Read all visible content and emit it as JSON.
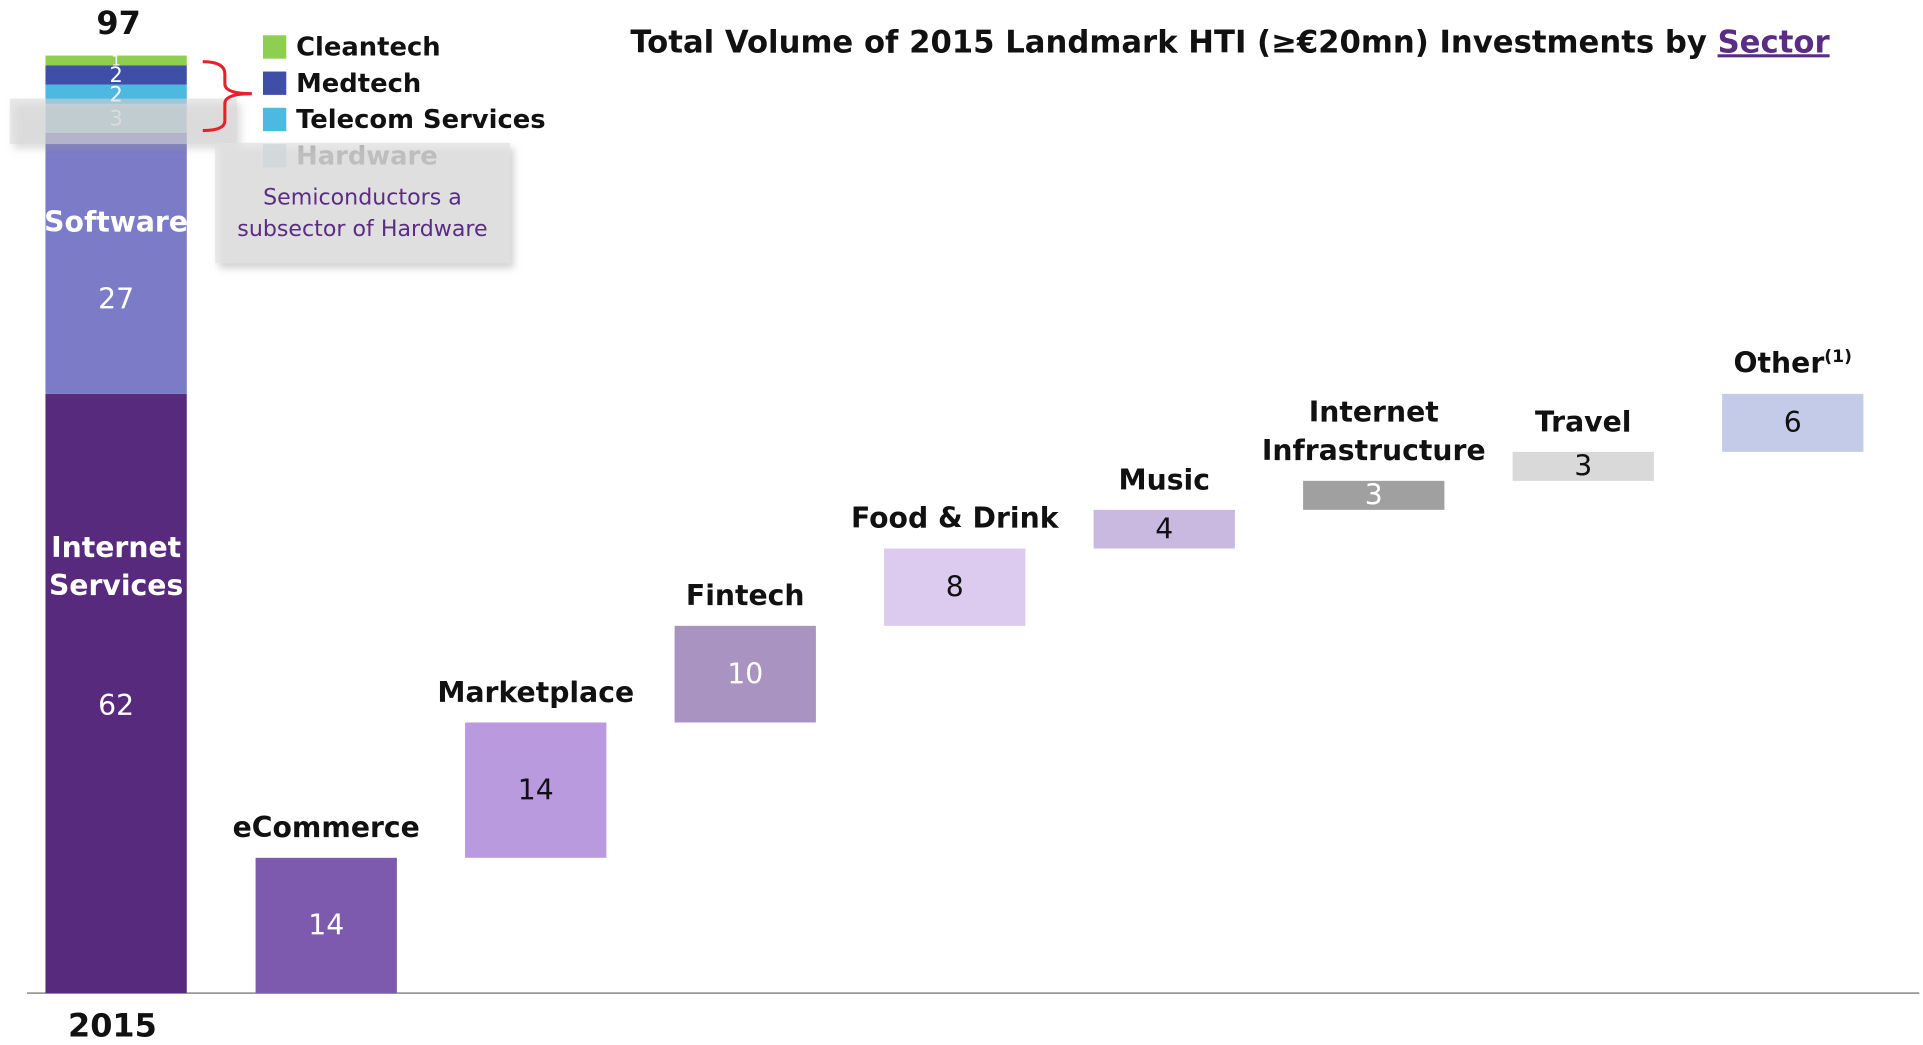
{
  "chart_data": {
    "type": "waterfall",
    "title": "Total Volume of 2015 Landmark HTI (≥€20mn) Investments by",
    "title_link": "Sector",
    "stack": {
      "category": "2015",
      "total": 97,
      "segments": [
        {
          "name": "Internet Services",
          "color": "#572a7e",
          "value": 62
        },
        {
          "name": "Software",
          "color": "#7b7bc8",
          "value": 27
        },
        {
          "name": "Hardware",
          "color": "#a9cdd9",
          "value": 3
        },
        {
          "name": "Telecom Services",
          "color": "#4db8e0",
          "value": 2
        },
        {
          "name": "Medtech",
          "color": "#3f4fa8",
          "value": 2
        },
        {
          "name": "Cleantech",
          "color": "#8fcf50",
          "value": 1
        }
      ]
    },
    "annotation": "Semiconductors a subsector of Hardware",
    "categories": [
      "eCommerce",
      "Marketplace",
      "Fintech",
      "Food & Drink",
      "Music",
      "Internet Infrastructure",
      "Travel",
      "Other"
    ],
    "category_notes": [
      null,
      null,
      null,
      null,
      null,
      null,
      null,
      "(1)"
    ],
    "values": [
      14,
      14,
      10,
      8,
      4,
      3,
      3,
      6
    ],
    "colors": [
      "#7e5aae",
      "#b99ade",
      "#a993c0",
      "#dccbee",
      "#c9b8df",
      "#a0a0a0",
      "#d9d9d9",
      "#c4cbe8"
    ]
  }
}
